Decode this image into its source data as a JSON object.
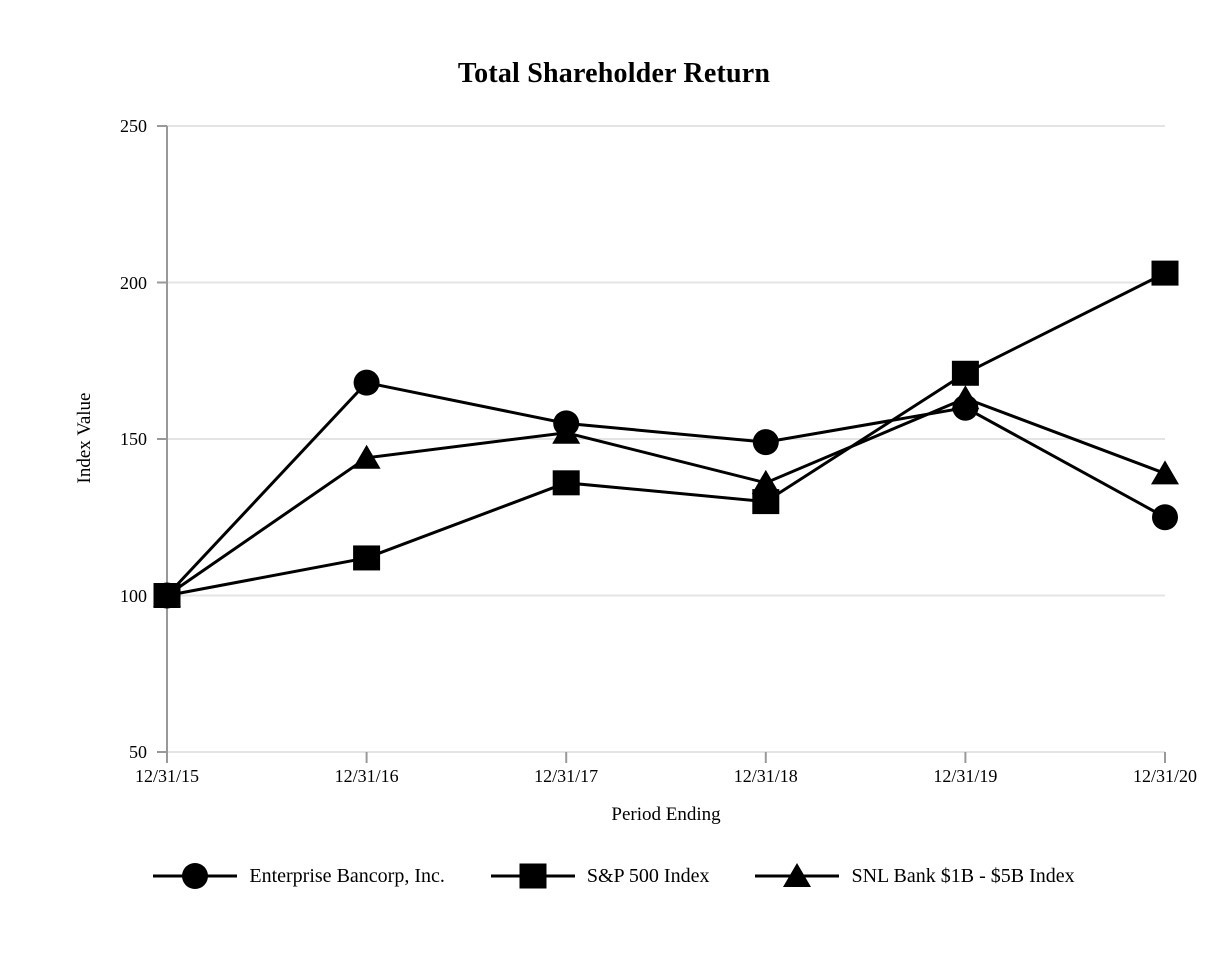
{
  "page": {
    "background": "#ffffff"
  },
  "chart_data": {
    "type": "line",
    "title": "Total Shareholder Return",
    "xlabel": "Period Ending",
    "ylabel": "Index Value",
    "categories": [
      "12/31/15",
      "12/31/16",
      "12/31/17",
      "12/31/18",
      "12/31/19",
      "12/31/20"
    ],
    "yticks": [
      250,
      200,
      150,
      100,
      50
    ],
    "ylim": [
      50,
      250
    ],
    "grid": "horizontal-gridlines-only",
    "legend_position": "bottom-center",
    "series": [
      {
        "name": "Enterprise Bancorp, Inc.",
        "marker": "circle",
        "color": "#000000",
        "values": [
          100,
          168,
          155,
          149,
          160,
          125
        ]
      },
      {
        "name": "S&P 500 Index",
        "marker": "square",
        "color": "#000000",
        "values": [
          100,
          112,
          136,
          130,
          171,
          203
        ]
      },
      {
        "name": "SNL Bank $1B - $5B Index",
        "marker": "triangle",
        "color": "#000000",
        "values": [
          100,
          144,
          152,
          136,
          163,
          139
        ]
      }
    ],
    "marker_draw_order": [
      2,
      0,
      1
    ],
    "colors": {
      "gridline": "#e4e4e4",
      "axis": "#999999",
      "series_line": "#000000",
      "text": "#000000"
    }
  }
}
